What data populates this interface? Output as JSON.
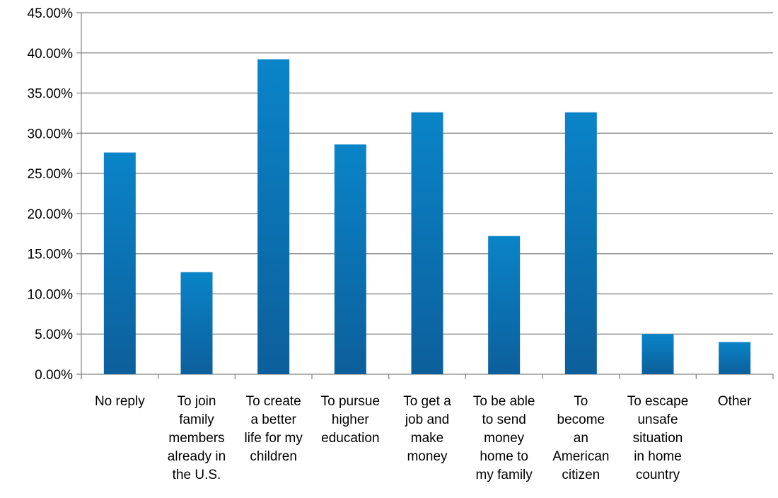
{
  "chart_data": {
    "type": "bar",
    "title": "",
    "xlabel": "",
    "ylabel": "",
    "ylim": [
      0,
      0.45
    ],
    "y_ticks": [
      0,
      0.05,
      0.1,
      0.15,
      0.2,
      0.25,
      0.3,
      0.35,
      0.4,
      0.45
    ],
    "y_tick_labels": [
      "0.00%",
      "5.00%",
      "10.00%",
      "15.00%",
      "20.00%",
      "25.00%",
      "30.00%",
      "35.00%",
      "40.00%",
      "45.00%"
    ],
    "grid": true,
    "legend": "none",
    "categories": [
      [
        "No reply"
      ],
      [
        "To join",
        "family",
        "members",
        "already in",
        "the U.S."
      ],
      [
        "To create",
        "a better",
        "life for my",
        "children"
      ],
      [
        "To pursue",
        "higher",
        "education"
      ],
      [
        "To get a",
        "job and",
        "make",
        "money"
      ],
      [
        "To be able",
        "to send",
        "money",
        "home to",
        "my family"
      ],
      [
        "To",
        "become",
        "an",
        "American",
        "citizen"
      ],
      [
        "To escape",
        "unsafe",
        "situation",
        "in home",
        "country"
      ],
      [
        "Other"
      ]
    ],
    "values": [
      0.276,
      0.127,
      0.392,
      0.286,
      0.326,
      0.172,
      0.326,
      0.05,
      0.04
    ],
    "colors": {
      "bar_top": "#0a84c8",
      "bar_bottom": "#0c5f9b",
      "grid": "#888888",
      "axis": "#888888"
    }
  }
}
